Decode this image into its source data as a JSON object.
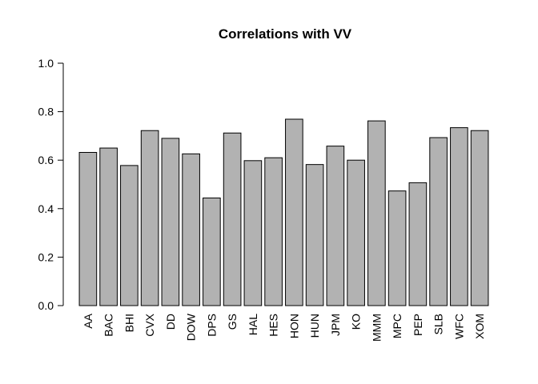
{
  "chart_data": {
    "type": "bar",
    "title": "Correlations with VV",
    "xlabel": "",
    "ylabel": "",
    "ylim": [
      0,
      1
    ],
    "y_ticks": [
      "0.0",
      "0.2",
      "0.4",
      "0.6",
      "0.8",
      "1.0"
    ],
    "categories": [
      "AA",
      "BAC",
      "BHI",
      "CVX",
      "DD",
      "DOW",
      "DPS",
      "GS",
      "HAL",
      "HES",
      "HON",
      "HUN",
      "JPM",
      "KO",
      "MMM",
      "MPC",
      "PEP",
      "SLB",
      "WFC",
      "XOM"
    ],
    "values": [
      0.632,
      0.65,
      0.578,
      0.722,
      0.69,
      0.626,
      0.444,
      0.712,
      0.598,
      0.61,
      0.769,
      0.582,
      0.658,
      0.6,
      0.762,
      0.473,
      0.507,
      0.693,
      0.734,
      0.722
    ],
    "grid": false,
    "legend": "none",
    "colors": {
      "bar_fill": "#b2b2b2",
      "bar_stroke": "#000000",
      "axis": "#000000"
    }
  }
}
